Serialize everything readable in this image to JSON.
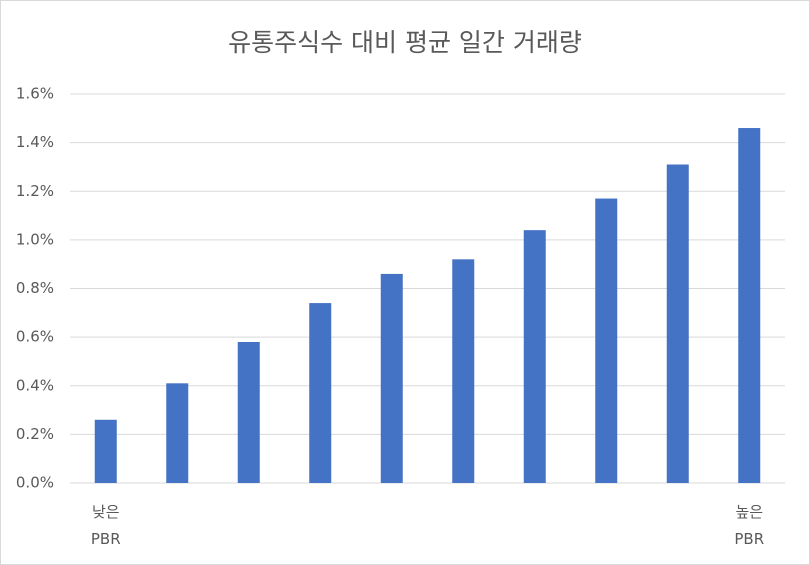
{
  "chart_data": {
    "type": "bar",
    "title": "유통주식수 대비 평균 일간 거래량",
    "categories": [
      "낮은\nPBR",
      null,
      null,
      null,
      null,
      null,
      null,
      null,
      null,
      "높은\nPBR"
    ],
    "values": [
      0.26,
      0.41,
      0.58,
      0.74,
      0.86,
      0.92,
      1.04,
      1.17,
      1.31,
      1.46
    ],
    "color": "#4472c4",
    "ylim": [
      0,
      1.6
    ],
    "yticks": [
      {
        "value": 0,
        "label": "0.0%"
      },
      {
        "value": 0.2,
        "label": "0.2%"
      },
      {
        "value": 0.4,
        "label": "0.4%"
      },
      {
        "value": 0.6,
        "label": "0.6%"
      },
      {
        "value": 0.8,
        "label": "0.8%"
      },
      {
        "value": 1.0,
        "label": "1.0%"
      },
      {
        "value": 1.2,
        "label": "1.2%"
      },
      {
        "value": 1.4,
        "label": "1.4%"
      },
      {
        "value": 1.6,
        "label": "1.6%"
      }
    ],
    "grid": true
  }
}
